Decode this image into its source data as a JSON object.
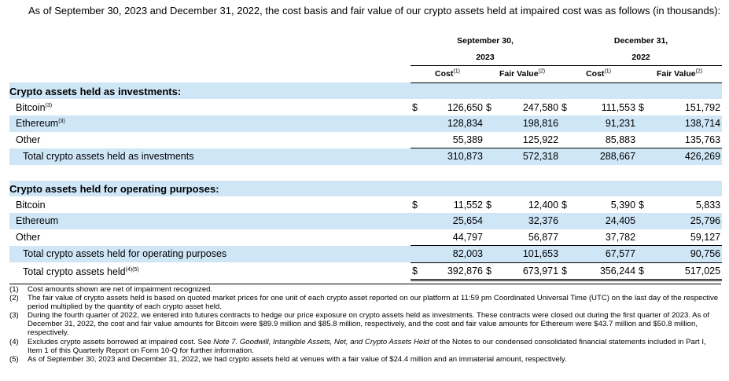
{
  "intro": "As of September 30, 2023 and December 31, 2022, the cost basis and fair value of our crypto assets held at impaired cost was as follows (in thousands):",
  "headers": {
    "period1_line1": "September 30,",
    "period1_line2": "2023",
    "period2_line1": "December 31,",
    "period2_line2": "2022",
    "cost": "Cost",
    "cost_sup": "(1)",
    "fair_value": "Fair Value",
    "fair_value_sup": "(2)"
  },
  "investments": {
    "title": "Crypto assets held as investments:",
    "rows": [
      {
        "label": "Bitcoin",
        "sup": "(3)",
        "dollar": "$",
        "c23": "126,650",
        "f23": "247,580",
        "c22": "111,553",
        "f22": "151,792"
      },
      {
        "label": "Ethereum",
        "sup": "(3)",
        "dollar": "",
        "c23": "128,834",
        "f23": "198,816",
        "c22": "91,231",
        "f22": "138,714"
      },
      {
        "label": "Other",
        "sup": "",
        "dollar": "",
        "c23": "55,389",
        "f23": "125,922",
        "c22": "85,883",
        "f22": "135,763"
      }
    ],
    "total": {
      "label": "Total crypto assets held as investments",
      "c23": "310,873",
      "f23": "572,318",
      "c22": "288,667",
      "f22": "426,269"
    }
  },
  "operating": {
    "title": "Crypto assets held for operating purposes:",
    "rows": [
      {
        "label": "Bitcoin",
        "dollar": "$",
        "c23": "11,552",
        "f23": "12,400",
        "c22": "5,390",
        "f22": "5,833"
      },
      {
        "label": "Ethereum",
        "dollar": "",
        "c23": "25,654",
        "f23": "32,376",
        "c22": "24,405",
        "f22": "25,796"
      },
      {
        "label": "Other",
        "dollar": "",
        "c23": "44,797",
        "f23": "56,877",
        "c22": "37,782",
        "f22": "59,127"
      }
    ],
    "total": {
      "label": "Total crypto assets held for operating purposes",
      "c23": "82,003",
      "f23": "101,653",
      "c22": "67,577",
      "f22": "90,756"
    }
  },
  "grand_total": {
    "label": "Total crypto assets held",
    "sup": "(4)(5)",
    "dollar": "$",
    "c23": "392,876",
    "f23": "673,971",
    "c22": "356,244",
    "f22": "517,025"
  },
  "footnotes": [
    {
      "num": "(1)",
      "text": "Cost amounts shown are net of impairment recognized."
    },
    {
      "num": "(2)",
      "text": "The fair value of crypto assets held is based on quoted market prices for one unit of each crypto asset reported on our platform at 11:59 pm Coordinated Universal Time (UTC) on the last day of the respective period multiplied by the quantity of each crypto asset held."
    },
    {
      "num": "(3)",
      "text": "During the fourth quarter of 2022, we entered into futures contracts to hedge our price exposure on crypto assets held as investments. These contracts were closed out during the first quarter of 2023. As of December 31, 2022, the cost and fair value amounts for Bitcoin were $89.9 million and $85.8 million, respectively, and the cost and fair value amounts for Ethereum were $43.7 million and $50.8 million, respectively."
    },
    {
      "num": "(4)",
      "text_a": "Excludes crypto assets borrowed at impaired cost. See ",
      "text_italic": "Note 7. Goodwill, Intangible Assets, Net, and Crypto Assets Held",
      "text_b": " of the Notes to our condensed consolidated financial statements included in Part I, Item 1 of this Quarterly Report on Form 10-Q for further information."
    },
    {
      "num": "(5)",
      "text": "As of September 30, 2023 and December 31, 2022, we had crypto assets held at venues with a fair value of $24.4 million and an immaterial amount, respectively."
    }
  ]
}
